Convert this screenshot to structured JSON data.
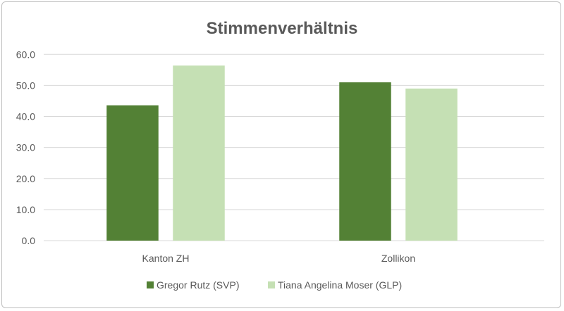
{
  "chart_data": {
    "type": "bar",
    "title": "Stimmenverhältnis",
    "categories": [
      "Kanton ZH",
      "Zollikon"
    ],
    "series": [
      {
        "name": "Gregor Rutz (SVP)",
        "color": "#538135",
        "values": [
          43.6,
          51.0
        ]
      },
      {
        "name": "Tiana Angelina Moser (GLP)",
        "color": "#C5E0B4",
        "values": [
          56.4,
          49.0
        ]
      }
    ],
    "ylim": [
      0,
      60
    ],
    "yticks": [
      "0.0",
      "10.0",
      "20.0",
      "30.0",
      "40.0",
      "50.0",
      "60.0"
    ],
    "xlabel": "",
    "ylabel": "",
    "grid": true,
    "legend": "bottom"
  }
}
